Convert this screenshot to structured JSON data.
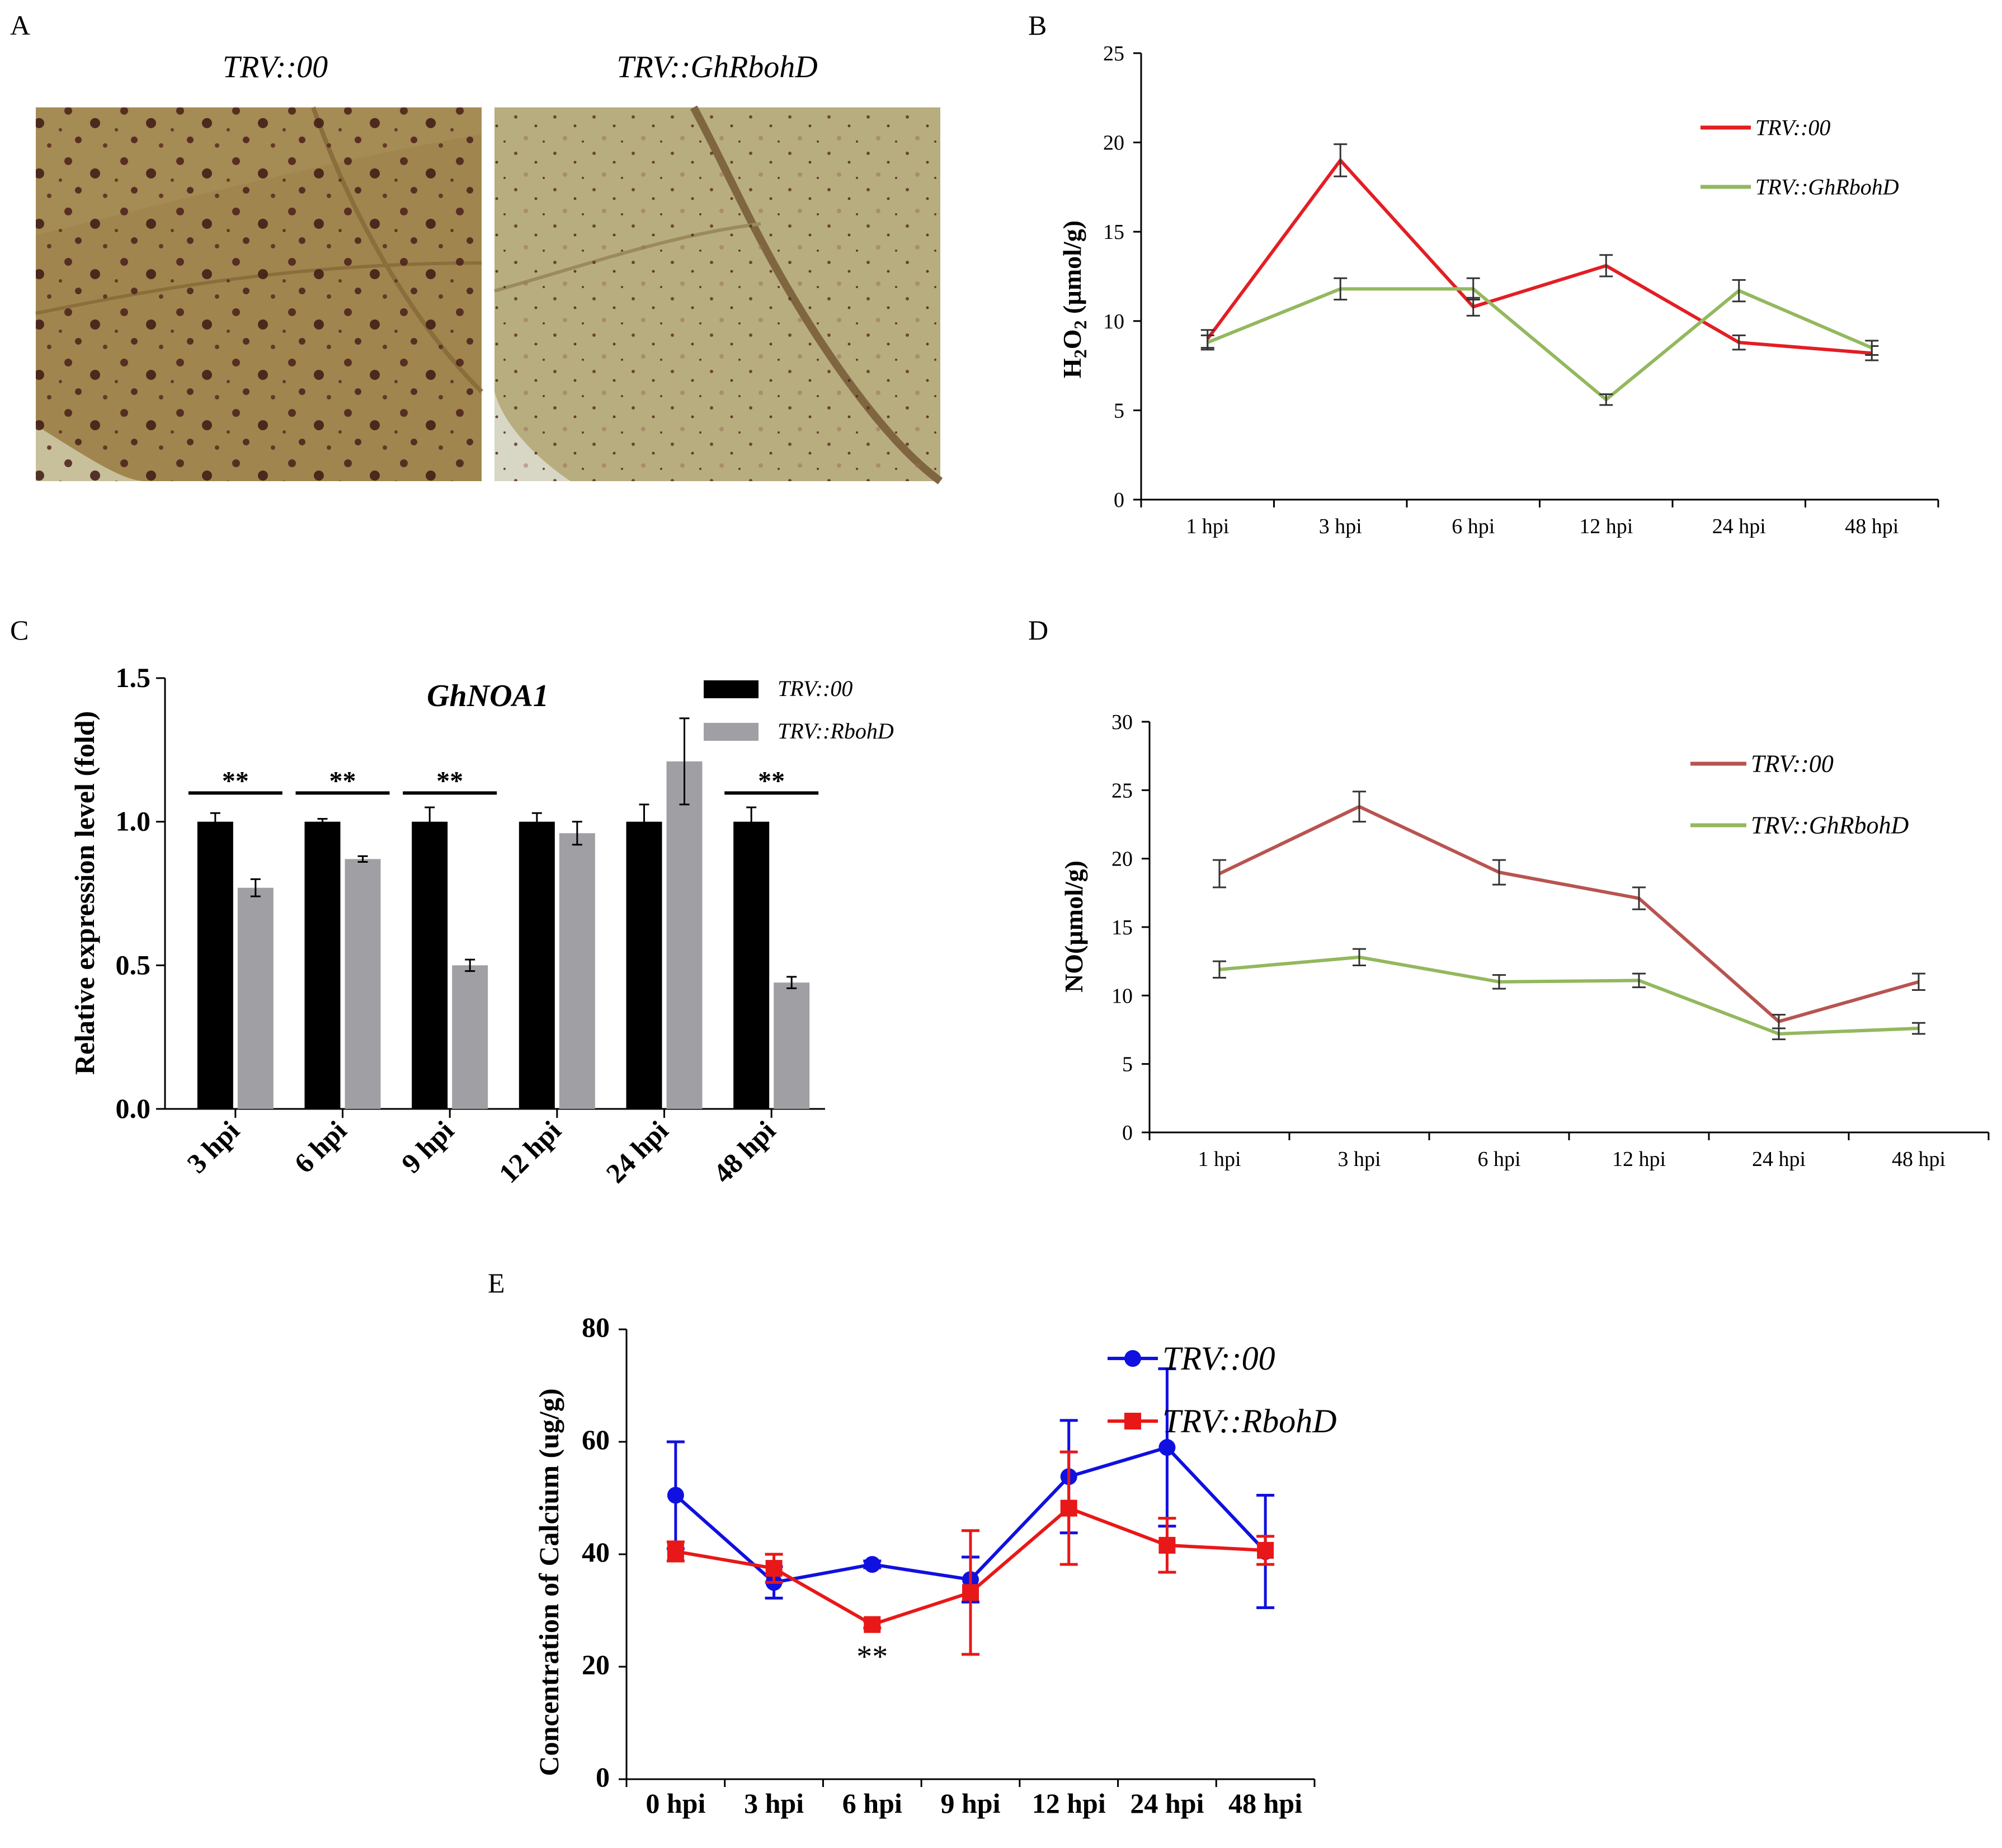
{
  "chart_data": [
    {
      "panel": "A",
      "type": "image",
      "images": [
        {
          "title": "TRV::00"
        },
        {
          "title": "TRV::GhRbohD"
        }
      ]
    },
    {
      "panel": "B",
      "type": "line",
      "title": "",
      "xlabel": "",
      "ylabel": "H2O2 (µmol/g)",
      "ylabel_parts": {
        "pre": "H",
        "sub1": "2",
        "mid": "O",
        "sub2": "2",
        "post": " (µmol/g)"
      },
      "categories": [
        "1 hpi",
        "3 hpi",
        "6 hpi",
        "12 hpi",
        "24 hpi",
        "48 hpi"
      ],
      "ylim": [
        0,
        25
      ],
      "yticks": [
        "0",
        "5",
        "10",
        "15",
        "20",
        "25"
      ],
      "legend_position": "top-right",
      "series": [
        {
          "name": "TRV::00",
          "color": "#e31e24",
          "values": [
            9.0,
            19.0,
            10.8,
            13.1,
            8.8,
            8.2
          ],
          "errors": [
            0.5,
            0.9,
            0.5,
            0.6,
            0.4,
            0.4
          ]
        },
        {
          "name": "TRV::GhRbohD",
          "color": "#93b85e",
          "values": [
            8.8,
            11.8,
            11.8,
            5.6,
            11.7,
            8.5
          ],
          "errors": [
            0.4,
            0.6,
            0.6,
            0.3,
            0.6,
            0.4
          ]
        }
      ]
    },
    {
      "panel": "C",
      "type": "bar",
      "title": "GhNOA1",
      "xlabel": "",
      "ylabel": "Relative expression level (fold)",
      "categories": [
        "3 hpi",
        "6 hpi",
        "9 hpi",
        "12 hpi",
        "24 hpi",
        "48 hpi"
      ],
      "ylim": [
        0,
        1.5
      ],
      "yticks": [
        "0.0",
        "0.5",
        "1.0",
        "1.5"
      ],
      "legend_position": "top-right",
      "significance": [
        "**",
        "**",
        "**",
        "",
        "",
        "**"
      ],
      "series": [
        {
          "name": "TRV::00",
          "color": "#000000",
          "values": [
            1.0,
            1.0,
            1.0,
            1.0,
            1.0,
            1.0
          ],
          "errors": [
            0.03,
            0.01,
            0.05,
            0.03,
            0.06,
            0.05
          ]
        },
        {
          "name": "TRV::RbohD",
          "color": "#a0a0a4",
          "values": [
            0.77,
            0.87,
            0.5,
            0.96,
            1.21,
            0.44
          ],
          "errors": [
            0.03,
            0.01,
            0.02,
            0.04,
            0.15,
            0.02
          ]
        }
      ]
    },
    {
      "panel": "D",
      "type": "line",
      "title": "",
      "xlabel": "",
      "ylabel": "NO(µmol/g)",
      "categories": [
        "1 hpi",
        "3 hpi",
        "6 hpi",
        "12 hpi",
        "24 hpi",
        "48 hpi"
      ],
      "ylim": [
        0,
        30
      ],
      "yticks": [
        "0",
        "5",
        "10",
        "15",
        "20",
        "25",
        "30"
      ],
      "legend_position": "top-right",
      "series": [
        {
          "name": "TRV::00",
          "color": "#b85450",
          "values": [
            18.9,
            23.8,
            19.0,
            17.1,
            8.1,
            11.0
          ],
          "errors": [
            1.0,
            1.1,
            0.9,
            0.8,
            0.5,
            0.6
          ]
        },
        {
          "name": "TRV::GhRbohD",
          "color": "#93b85e",
          "values": [
            11.9,
            12.8,
            11.0,
            11.1,
            7.2,
            7.6
          ],
          "errors": [
            0.6,
            0.6,
            0.5,
            0.5,
            0.4,
            0.4
          ]
        }
      ]
    },
    {
      "panel": "E",
      "type": "line",
      "title": "",
      "xlabel": "",
      "ylabel": "Concentration of Calcium (ug/g)",
      "categories": [
        "0 hpi",
        "3 hpi",
        "6 hpi",
        "9 hpi",
        "12 hpi",
        "24 hpi",
        "48 hpi"
      ],
      "ylim": [
        0,
        80
      ],
      "yticks": [
        "0",
        "20",
        "40",
        "60",
        "80"
      ],
      "legend_position": "top-right",
      "annotation": {
        "text": "**",
        "category": "6 hpi"
      },
      "series": [
        {
          "name": "TRV::00",
          "color": "#1010e0",
          "marker": "circle",
          "values": [
            50.5,
            35.0,
            38.2,
            35.5,
            53.8,
            59.0,
            40.5
          ],
          "errors": [
            9.5,
            2.8,
            0.6,
            4.0,
            10.0,
            14.0,
            10.0
          ]
        },
        {
          "name": "TRV::RbohD",
          "color": "#e81818",
          "marker": "square",
          "values": [
            40.5,
            37.5,
            27.5,
            33.2,
            48.2,
            41.6,
            40.7
          ],
          "errors": [
            1.7,
            2.5,
            0.6,
            11.0,
            10.0,
            4.8,
            2.5
          ]
        }
      ]
    }
  ]
}
